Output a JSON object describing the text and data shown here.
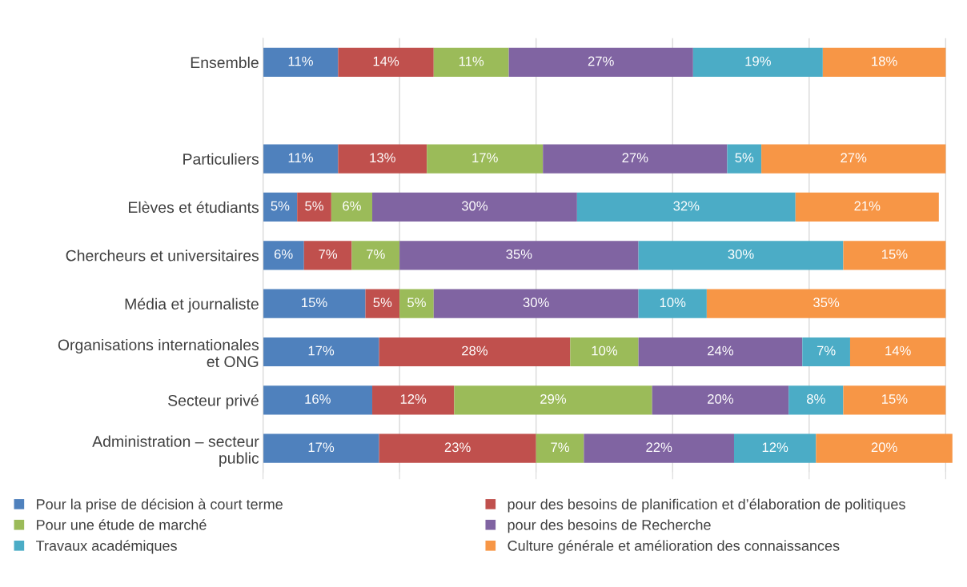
{
  "chart_data": {
    "type": "bar",
    "orientation": "horizontal",
    "stacked": true,
    "grid": "x",
    "legend": "bottom",
    "tick_labels": "y",
    "categories": [
      "Ensemble",
      null,
      "Particuliers",
      "Elèves et étudiants",
      "Chercheurs et universitaires",
      "Média et journaliste",
      "Organisations internationales\net ONG",
      "Secteur privé",
      "Administration – secteur\npublic"
    ],
    "series": [
      {
        "name": "Pour la prise de décision à court terme",
        "color": "#4f81bd",
        "values": [
          11,
          null,
          11,
          5,
          6,
          15,
          17,
          16,
          17
        ],
        "value_labels": [
          "11%",
          null,
          "11%",
          "5%",
          "6%",
          "15%",
          "17%",
          "16%",
          "17%"
        ]
      },
      {
        "name": "pour des besoins de planification et d’élaboration de politiques",
        "color": "#c0504d",
        "values": [
          14,
          null,
          13,
          5,
          7,
          5,
          28,
          12,
          23
        ],
        "value_labels": [
          "14%",
          null,
          "13%",
          "5%",
          "7%",
          "5%",
          "28%",
          "12%",
          "23%"
        ]
      },
      {
        "name": "Pour une étude de marché",
        "color": "#9bbb59",
        "values": [
          11,
          null,
          17,
          6,
          7,
          5,
          10,
          29,
          7
        ],
        "value_labels": [
          "11%",
          null,
          "17%",
          "6%",
          "7%",
          "5%",
          "10%",
          "29%",
          "7%"
        ]
      },
      {
        "name": "pour des besoins de Recherche",
        "color": "#8064a2",
        "values": [
          27,
          null,
          27,
          30,
          35,
          30,
          24,
          20,
          22
        ],
        "value_labels": [
          "27%",
          null,
          "27%",
          "30%",
          "35%",
          "30%",
          "24%",
          "20%",
          "22%"
        ]
      },
      {
        "name": "Travaux académiques",
        "color": "#4bacc6",
        "values": [
          19,
          null,
          5,
          32,
          30,
          10,
          7,
          8,
          12
        ],
        "value_labels": [
          "19%",
          null,
          "5%",
          "32%",
          "30%",
          "10%",
          "7%",
          "8%",
          "12%"
        ]
      },
      {
        "name": "Culture générale et amélioration des connaissances",
        "color": "#f79646",
        "values": [
          18,
          null,
          27,
          21,
          15,
          35,
          14,
          15,
          20
        ],
        "value_labels": [
          "18%",
          null,
          "27%",
          "21%",
          "15%",
          "35%",
          "14%",
          "15%",
          "20%"
        ]
      }
    ]
  }
}
